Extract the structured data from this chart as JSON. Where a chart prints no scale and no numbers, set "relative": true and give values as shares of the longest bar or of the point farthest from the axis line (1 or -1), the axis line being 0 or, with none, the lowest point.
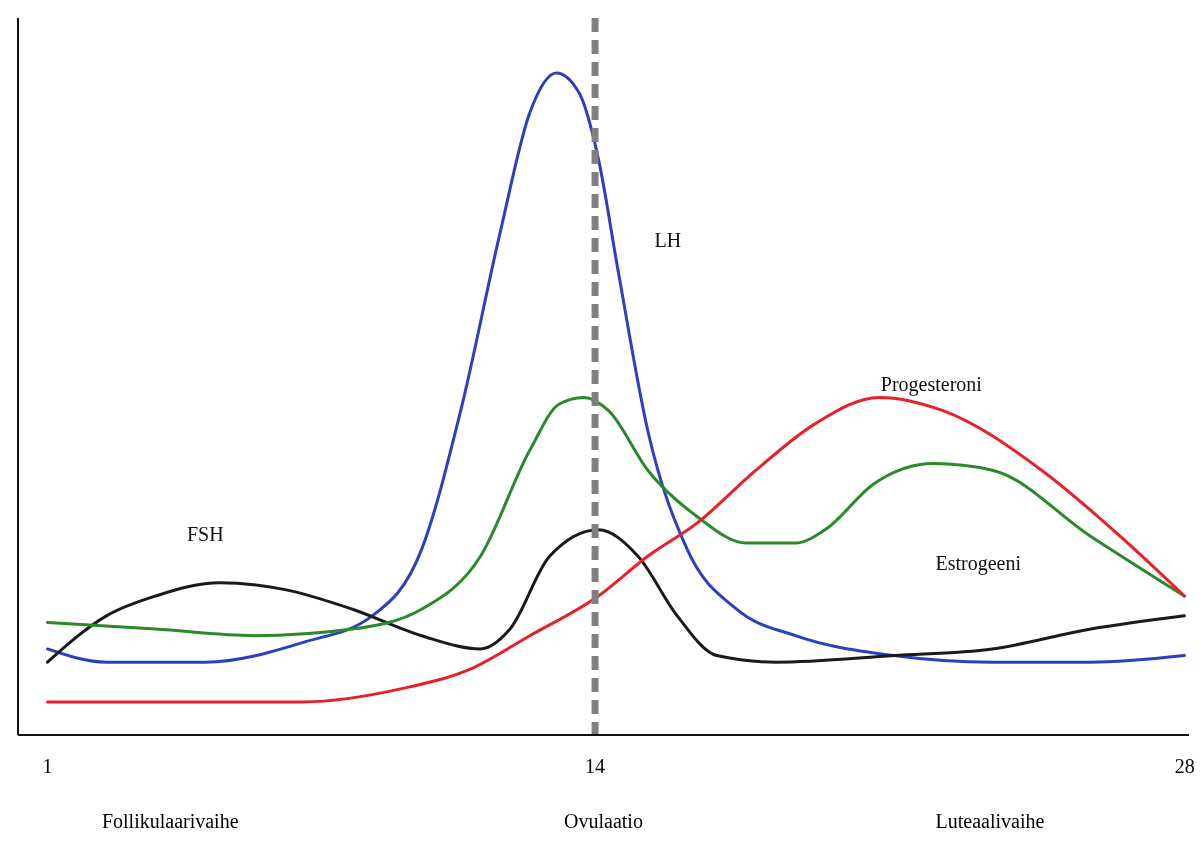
{
  "chart_data": {
    "type": "line",
    "relative": true,
    "xlim": [
      0.3,
      28.1
    ],
    "xticks": [
      1,
      14,
      28
    ],
    "line_style": "solid",
    "marker": "none",
    "ref_lines": [
      {
        "axis": "x",
        "value": 14,
        "color": "#808080",
        "line_style": "dashed"
      }
    ],
    "annotations": [
      "Follikulaarivaihe",
      "Ovulaatio",
      "Luteaalivaihe"
    ],
    "series": [
      {
        "name": "LH",
        "color": "#2b3fbf",
        "x": [
          1,
          2.4,
          4.74,
          7.07,
          8.71,
          9.88,
          10.81,
          11.75,
          12.45,
          13.08,
          13.62,
          14.08,
          14.55,
          15.25,
          16.19,
          17.36,
          18.76,
          21.09,
          23.43,
          25.77,
          27.99
        ],
        "values": [
          0.13,
          0.11,
          0.11,
          0.14,
          0.18,
          0.28,
          0.49,
          0.76,
          0.94,
          1,
          0.97,
          0.87,
          0.7,
          0.46,
          0.28,
          0.19,
          0.15,
          0.12,
          0.11,
          0.11,
          0.12
        ]
      },
      {
        "name": "FSH",
        "color": "#1a1a1a",
        "x": [
          1,
          2.4,
          3.57,
          5.09,
          6.61,
          8.24,
          9.88,
          11.28,
          11.98,
          12.92,
          14.08,
          15.02,
          15.95,
          16.89,
          18.29,
          21.09,
          23.43,
          25.77,
          27.99
        ],
        "values": [
          0.11,
          0.18,
          0.21,
          0.23,
          0.22,
          0.19,
          0.15,
          0.13,
          0.16,
          0.27,
          0.31,
          0.27,
          0.18,
          0.12,
          0.11,
          0.12,
          0.13,
          0.16,
          0.18
        ]
      },
      {
        "name": "Estrogeeni",
        "color": "#2a8a2a",
        "x": [
          1,
          3.57,
          5.91,
          8.24,
          9.88,
          11.28,
          12.45,
          13.15,
          13.73,
          14.32,
          15.25,
          16.42,
          17.59,
          18.76,
          19.46,
          20.63,
          22.03,
          23.43,
          25.77,
          27.99
        ],
        "values": [
          0.17,
          0.16,
          0.15,
          0.16,
          0.19,
          0.27,
          0.43,
          0.5,
          0.51,
          0.49,
          0.4,
          0.33,
          0.29,
          0.29,
          0.31,
          0.38,
          0.41,
          0.4,
          0.3,
          0.21
        ]
      },
      {
        "name": "Progesteroni",
        "color": "#e8202a",
        "x": [
          1,
          3.57,
          7.07,
          9.41,
          11.05,
          12.45,
          14.08,
          15.25,
          16.42,
          17.82,
          19.22,
          20.74,
          22.26,
          24.6,
          26.47,
          27.99
        ],
        "values": [
          0.05,
          0.05,
          0.05,
          0.07,
          0.1,
          0.15,
          0.21,
          0.27,
          0.32,
          0.4,
          0.47,
          0.51,
          0.49,
          0.4,
          0.3,
          0.21
        ]
      }
    ]
  }
}
